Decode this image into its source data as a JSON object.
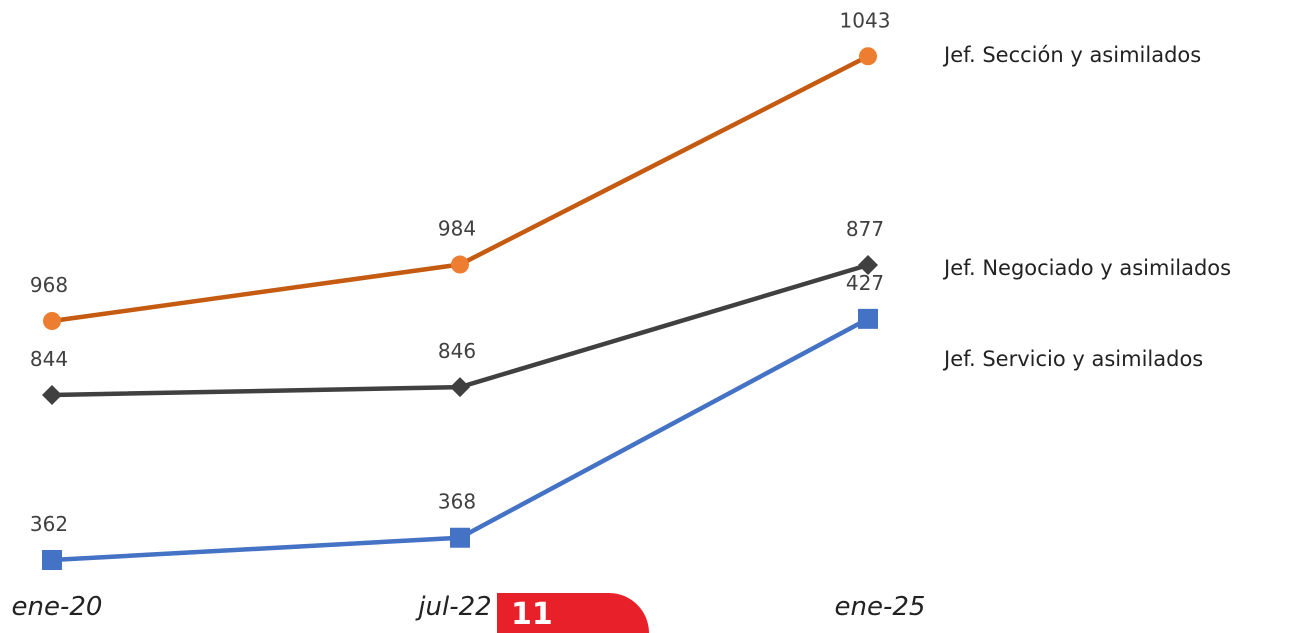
{
  "chart_data": {
    "type": "line",
    "categories": [
      "ene-20",
      "jul-22",
      "ene-25"
    ],
    "series": [
      {
        "name": "Jef. Sección  y asimilados",
        "values": [
          968,
          984,
          1043
        ],
        "color": "#c55a11",
        "marker_color": "#ed7d31",
        "marker": "circle"
      },
      {
        "name": "Jef. Negociado  y asimilados",
        "values": [
          844,
          846,
          877
        ],
        "color": "#404040",
        "marker_color": "#404040",
        "marker": "diamond"
      },
      {
        "name": "Jef. Servicio  y asimilados",
        "values": [
          362,
          368,
          427
        ],
        "color": "#4472c4",
        "marker_color": "#4472c4",
        "marker": "square"
      }
    ],
    "title": "",
    "xlabel": "",
    "ylabel": "",
    "grid": false,
    "legend": "right"
  }
}
